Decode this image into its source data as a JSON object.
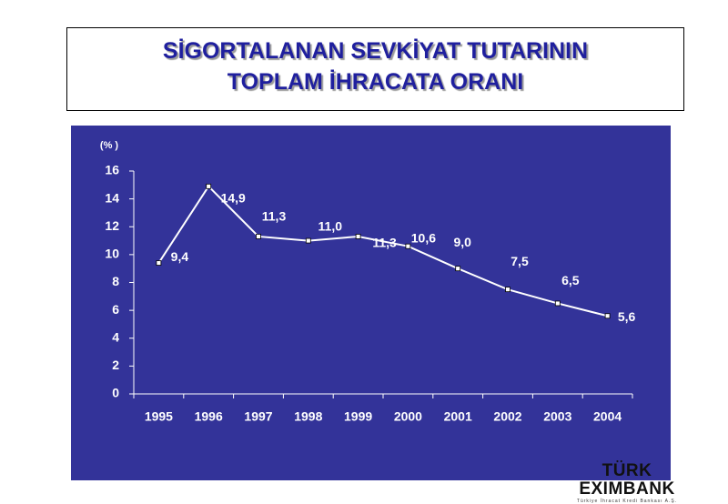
{
  "chart_data": {
    "type": "line",
    "title": [
      "SİGORTALANAN SEVKİYAT TUTARININ",
      "TOPLAM İHRACATA ORANI"
    ],
    "y_label": "(% )",
    "categories": [
      "1995",
      "1996",
      "1997",
      "1998",
      "1999",
      "2000",
      "2001",
      "2002",
      "2003",
      "2004"
    ],
    "values": [
      9.4,
      14.9,
      11.3,
      11.0,
      11.3,
      10.6,
      9.0,
      7.5,
      6.5,
      5.6
    ],
    "value_labels": [
      "9,4",
      "14,9",
      "11,3",
      "11,0",
      "11,3",
      "10,6",
      "9,0",
      "7,5",
      "6,5",
      "5,6"
    ],
    "color": "#ffffff",
    "background": "#333399",
    "ylim": [
      0,
      16
    ],
    "yticks": [
      0,
      2,
      4,
      6,
      8,
      10,
      12,
      14,
      16
    ],
    "grid": false
  },
  "logo": {
    "name": "TÜRK EXIMBANK",
    "tagline": "Türkiye İhracat Kredi Bankası A.Ş."
  }
}
